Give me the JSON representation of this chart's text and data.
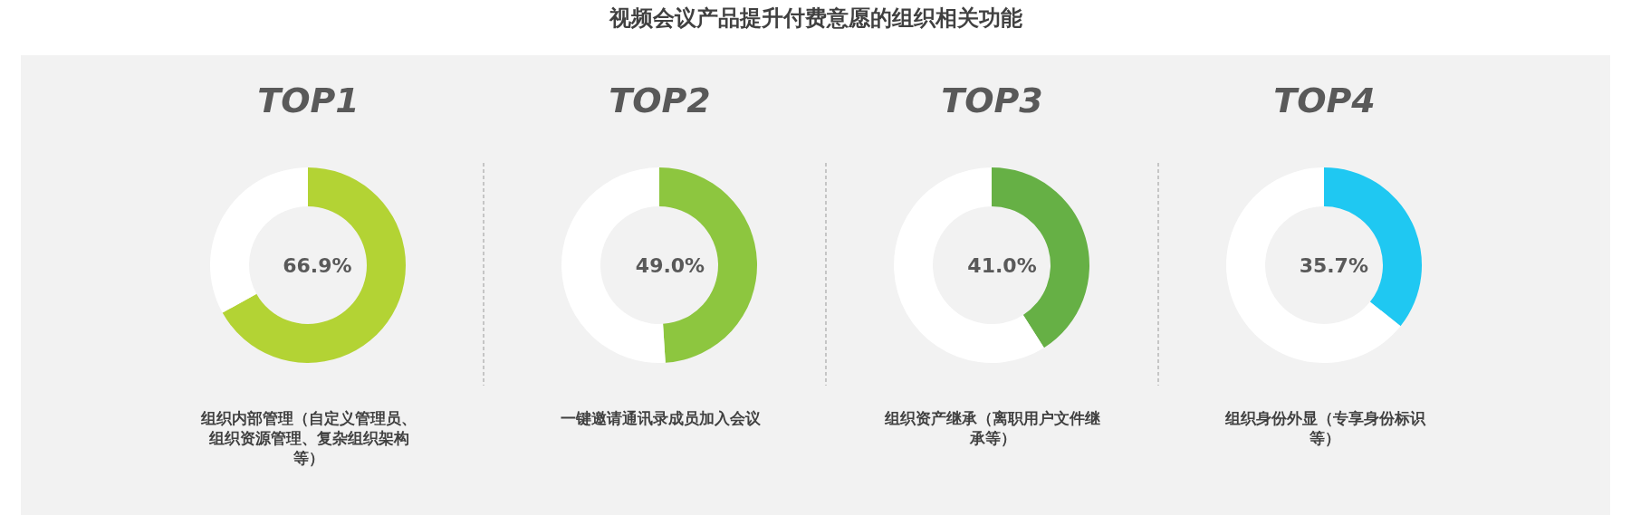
{
  "chart_data": [
    {
      "type": "donut",
      "title": "视频会议产品提升付费意愿的组织相关功能",
      "subtitle": "TOP1",
      "xlabel": "组织内部管理（自定义管理员、组织资源管理、复杂组织架构等）",
      "categories": [
        null,
        null
      ],
      "values": [
        66.9,
        33.1
      ],
      "colors": [
        "#b3d334",
        "#ffffff"
      ],
      "value_labels": [
        "66.9%",
        null
      ]
    },
    {
      "type": "donut",
      "subtitle": "TOP2",
      "xlabel": "一键邀请通讯录成员加入会议",
      "categories": [
        null,
        null
      ],
      "values": [
        49.0,
        51.0
      ],
      "colors": [
        "#8dc63f",
        "#ffffff"
      ],
      "value_labels": [
        "49.0%",
        null
      ]
    },
    {
      "type": "donut",
      "subtitle": "TOP3",
      "xlabel": "组织资产继承（离职用户文件继承等）",
      "categories": [
        null,
        null
      ],
      "values": [
        41.0,
        59.0
      ],
      "colors": [
        "#66b045",
        "#ffffff"
      ],
      "value_labels": [
        "41.0%",
        null
      ]
    },
    {
      "type": "donut",
      "subtitle": "TOP4",
      "xlabel": "组织身份外显（专享身份标识等）",
      "categories": [
        null,
        null
      ],
      "values": [
        35.7,
        64.3
      ],
      "colors": [
        "#1fc8f2",
        "#ffffff"
      ],
      "value_labels": [
        "35.7%",
        null
      ]
    }
  ]
}
